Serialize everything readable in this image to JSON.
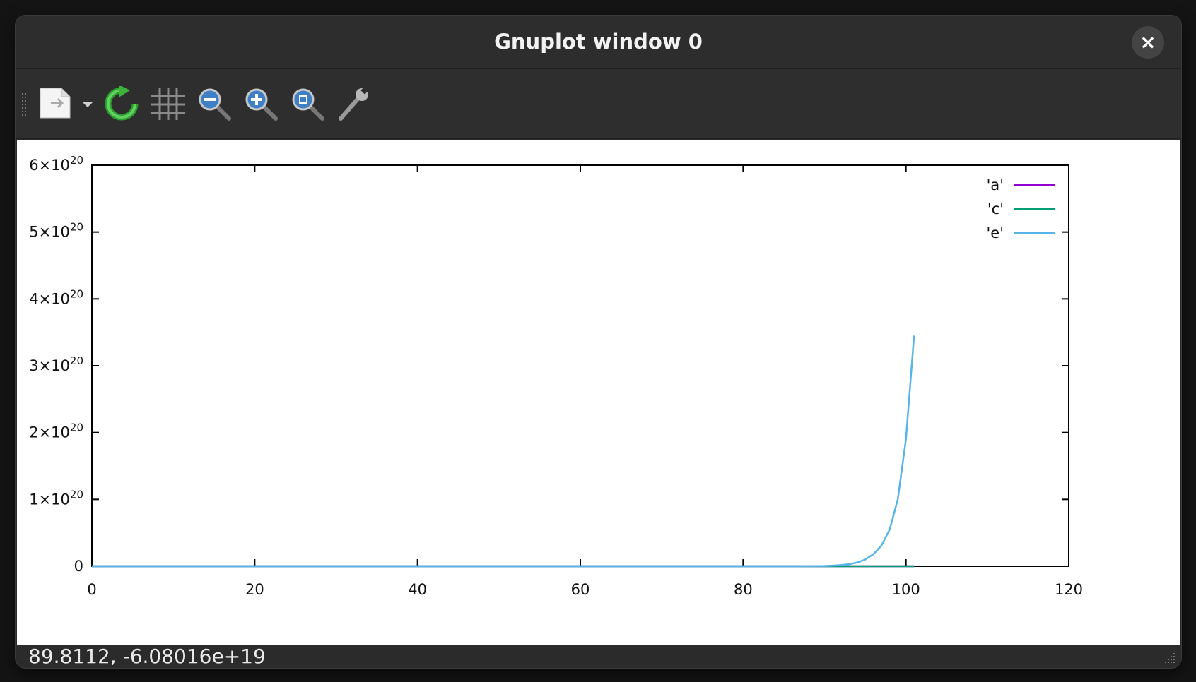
{
  "window": {
    "title": "Gnuplot window 0",
    "close_label": "×"
  },
  "toolbar": {
    "items": [
      {
        "icon": "export-icon"
      },
      {
        "icon": "dropdown-arrow-icon"
      },
      {
        "icon": "replot-icon"
      },
      {
        "icon": "grid-icon"
      },
      {
        "icon": "zoom-out-icon"
      },
      {
        "icon": "zoom-in-icon"
      },
      {
        "icon": "zoom-fit-icon"
      },
      {
        "icon": "settings-wrench-icon"
      }
    ]
  },
  "status": {
    "text": "89.8112, -6.08016e+19"
  },
  "chart_data": {
    "type": "line",
    "title": "",
    "xlabel": "",
    "ylabel": "",
    "xlim": [
      0,
      120
    ],
    "ylim": [
      0,
      6e+20
    ],
    "x_ticks": [
      "0",
      "20",
      "40",
      "60",
      "80",
      "100",
      "120"
    ],
    "y_ticks": [
      {
        "mant": "0",
        "exp": ""
      },
      {
        "mant": "1×10",
        "exp": "20"
      },
      {
        "mant": "2×10",
        "exp": "20"
      },
      {
        "mant": "3×10",
        "exp": "20"
      },
      {
        "mant": "4×10",
        "exp": "20"
      },
      {
        "mant": "5×10",
        "exp": "20"
      },
      {
        "mant": "6×10",
        "exp": "20"
      }
    ],
    "legend_position": "top-right",
    "grid": false,
    "series": [
      {
        "name": "'a'",
        "color": "#9400d3",
        "x": [
          0,
          101
        ],
        "y": [
          0,
          0
        ]
      },
      {
        "name": "'c'",
        "color": "#009e73",
        "x": [
          0,
          101
        ],
        "y": [
          0,
          0
        ]
      },
      {
        "name": "'e'",
        "color": "#56b4e9",
        "x": [
          0,
          80,
          85,
          88,
          90,
          91,
          92,
          93,
          94,
          95,
          96,
          97,
          98,
          99,
          100,
          101
        ],
        "y": [
          0,
          0,
          3e+16,
          1e+17,
          4e+17,
          9e+17,
          1.7e+18,
          3e+18,
          5.5e+18,
          1e+19,
          1.8e+19,
          3.1e+19,
          5.5e+19,
          1e+20,
          1.9e+20,
          3.45e+20
        ]
      }
    ]
  }
}
